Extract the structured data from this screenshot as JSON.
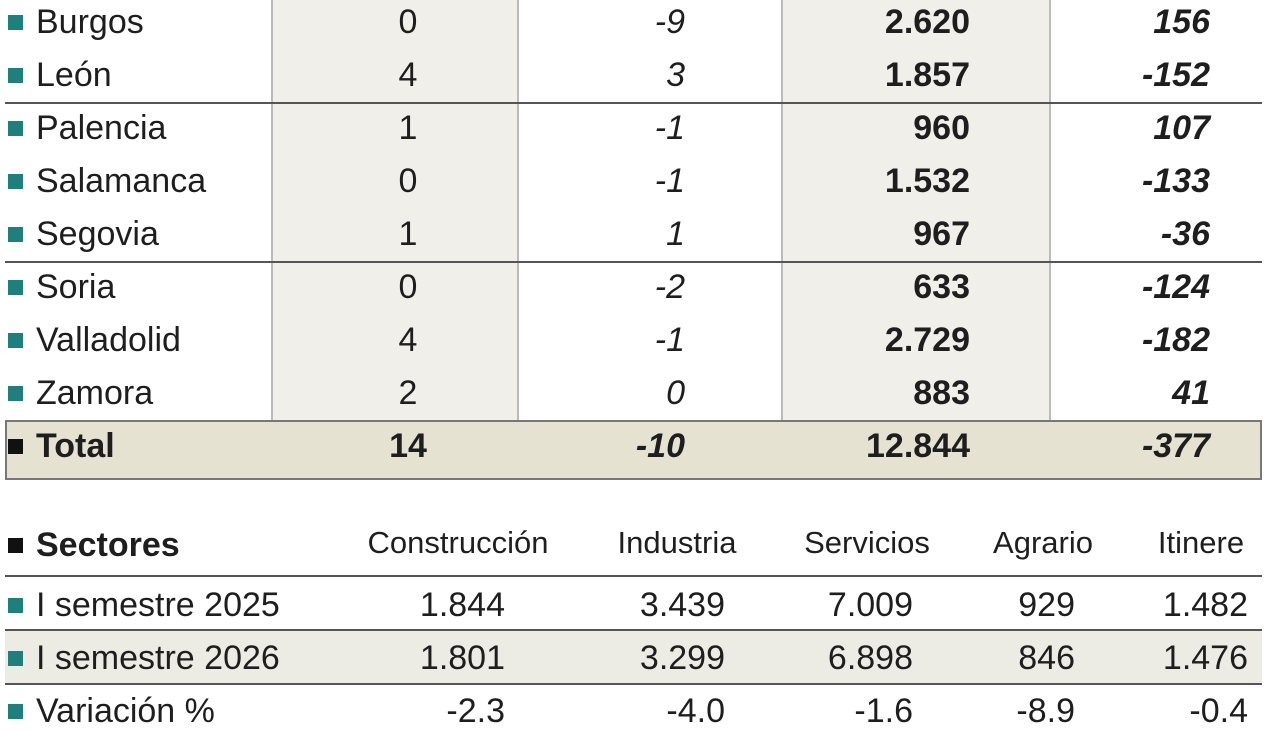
{
  "regions": {
    "rows": [
      [
        "Burgos",
        "0",
        "-9",
        "2.620",
        "156"
      ],
      [
        "León",
        "4",
        "3",
        "1.857",
        "-152"
      ],
      [
        "Palencia",
        "1",
        "-1",
        "960",
        "107"
      ],
      [
        "Salamanca",
        "0",
        "-1",
        "1.532",
        "-133"
      ],
      [
        "Segovia",
        "1",
        "1",
        "967",
        "-36"
      ],
      [
        "Soria",
        "0",
        "-2",
        "633",
        "-124"
      ],
      [
        "Valladolid",
        "4",
        "-1",
        "2.729",
        "-182"
      ],
      [
        "Zamora",
        "2",
        "0",
        "883",
        "41"
      ]
    ],
    "total": [
      "Total",
      "14",
      "-10",
      "12.844",
      "-377"
    ]
  },
  "sectors": {
    "title": "Sectores",
    "columns": [
      "Construcción",
      "Industria",
      "Servicios",
      "Agrario",
      "Itinere"
    ],
    "rows": [
      [
        "I semestre 2025",
        "1.844",
        "3.439",
        "7.009",
        "929",
        "1.482"
      ],
      [
        "I semestre 2026",
        "1.801",
        "3.299",
        "6.898",
        "846",
        "1.476"
      ],
      [
        "Variación %",
        "-2.3",
        "-4.0",
        "-1.6",
        "-8.9",
        "-0.4"
      ]
    ]
  }
}
